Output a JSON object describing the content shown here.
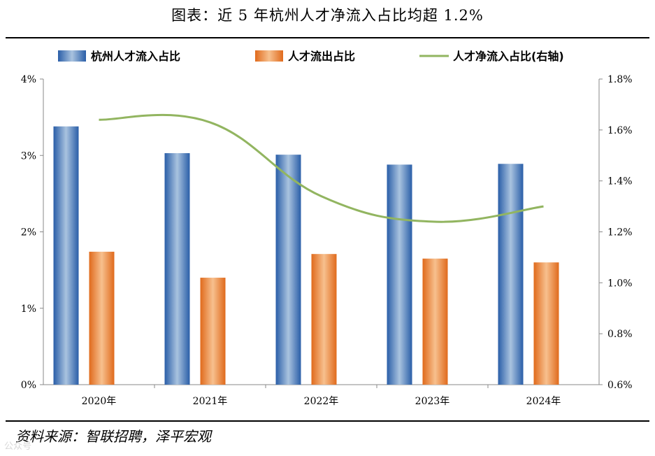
{
  "title": "图表：近 5 年杭州人才净流入占比均超 1.2%",
  "source": "资料来源：智联招聘，泽平宏观",
  "watermark": "公众号",
  "chart_data": {
    "type": "bar",
    "categories": [
      "2020年",
      "2021年",
      "2022年",
      "2023年",
      "2024年"
    ],
    "series": [
      {
        "name": "杭州人才流入占比",
        "type": "bar",
        "axis": "left",
        "color": "#3d72b8",
        "values": [
          3.38,
          3.03,
          3.01,
          2.88,
          2.89
        ]
      },
      {
        "name": "人才流出占比",
        "type": "bar",
        "axis": "left",
        "color": "#e8782a",
        "values": [
          1.74,
          1.4,
          1.71,
          1.65,
          1.6
        ]
      },
      {
        "name": "人才净流入占比(右轴)",
        "type": "line",
        "axis": "right",
        "color": "#92b560",
        "values": [
          1.64,
          1.63,
          1.34,
          1.24,
          1.3
        ]
      }
    ],
    "y_left": {
      "min": 0,
      "max": 4,
      "ticks": [
        "0%",
        "1%",
        "2%",
        "3%",
        "4%"
      ]
    },
    "y_right": {
      "min": 0.6,
      "max": 1.8,
      "ticks": [
        "0.6%",
        "0.8%",
        "1.0%",
        "1.2%",
        "1.4%",
        "1.6%",
        "1.8%"
      ]
    },
    "legend_position": "top",
    "grid": false
  }
}
